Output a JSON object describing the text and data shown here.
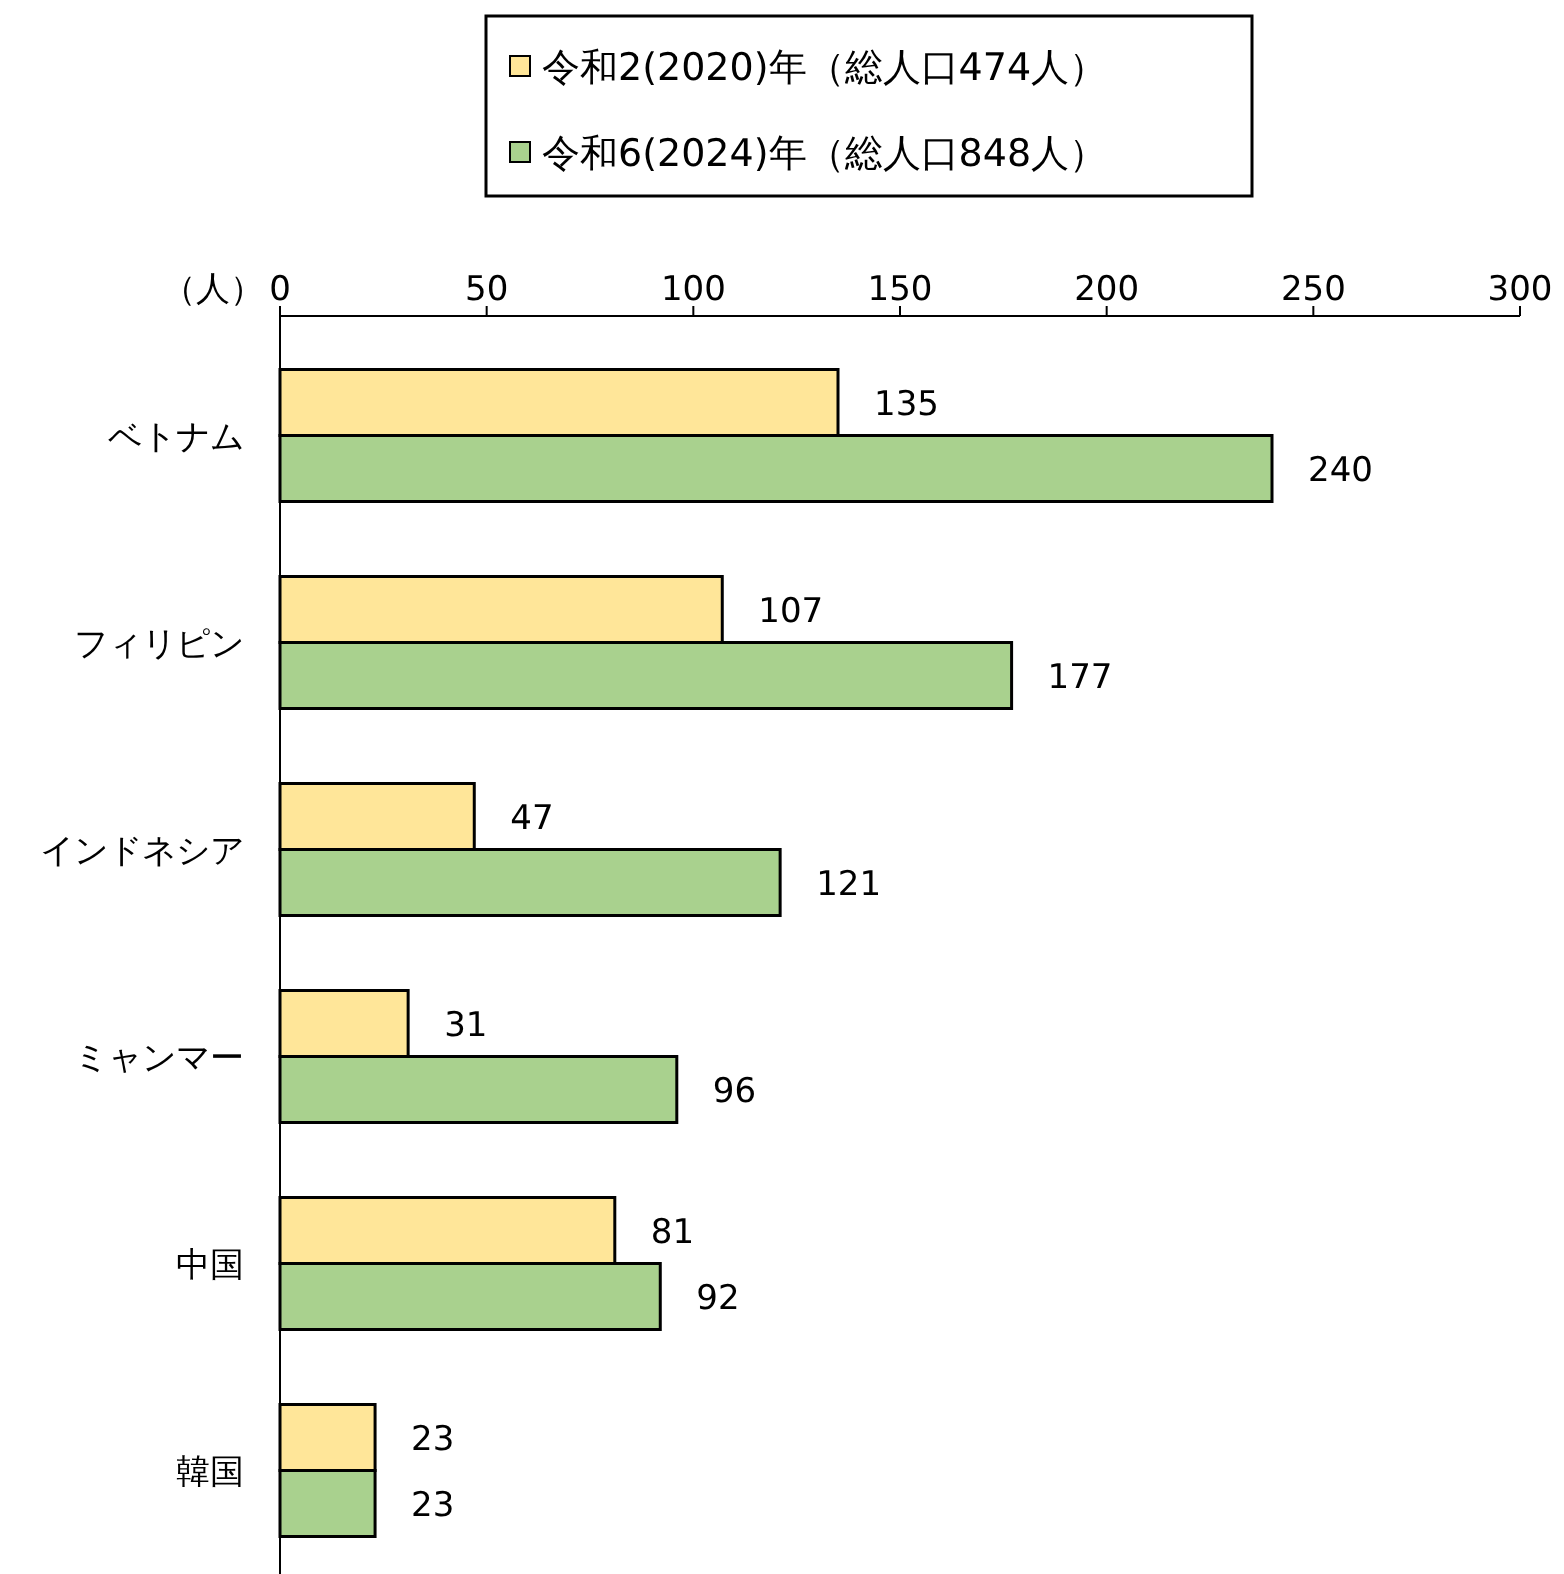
{
  "chart_data": {
    "type": "bar",
    "orientation": "horizontal",
    "xlabel": "（人）",
    "categories": [
      "ベトナム",
      "フィリピン",
      "インドネシア",
      "ミャンマー",
      "中国",
      "韓国"
    ],
    "series": [
      {
        "name": "令和2(2020)年（総人口474人）",
        "color": "#ffe699",
        "values": [
          135,
          107,
          47,
          31,
          81,
          23
        ]
      },
      {
        "name": "令和6(2024)年（総人口848人）",
        "color": "#a9d18e",
        "values": [
          240,
          177,
          121,
          96,
          92,
          23
        ]
      }
    ],
    "xlim": [
      0,
      300
    ],
    "xticks": [
      0,
      50,
      100,
      150,
      200,
      250,
      300
    ],
    "legend": "top",
    "data_labels": true
  }
}
